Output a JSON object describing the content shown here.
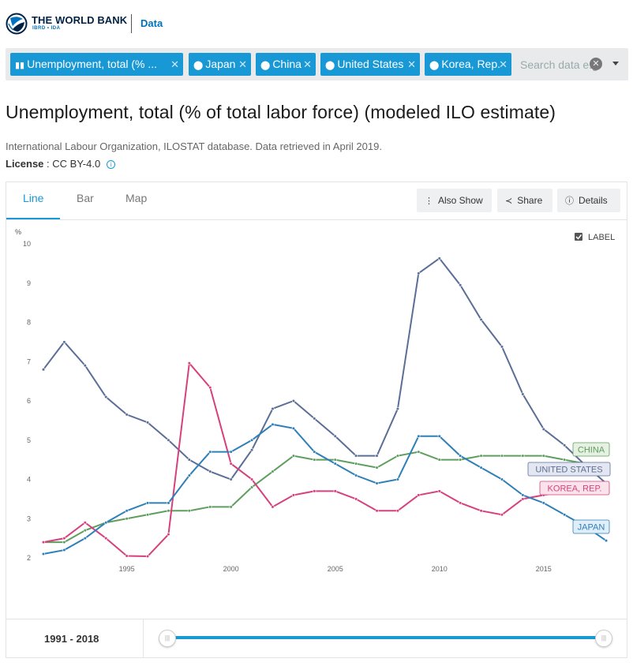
{
  "header": {
    "brand": "THE WORLD BANK",
    "brand_sub": "IBRD • IDA",
    "section": "Data"
  },
  "filters": {
    "chips": [
      {
        "label": "Unemployment, total (% ...",
        "icon": "bar-chart-icon"
      },
      {
        "label": "Japan",
        "icon": "pin-icon"
      },
      {
        "label": "China",
        "icon": "pin-icon"
      },
      {
        "label": "United States",
        "icon": "pin-icon"
      },
      {
        "label": "Korea, Rep.",
        "icon": "pin-icon"
      }
    ],
    "search_placeholder": "Search data e.g"
  },
  "page": {
    "title": "Unemployment, total (% of total labor force) (modeled ILO estimate)",
    "source": "International Labour Organization, ILOSTAT database. Data retrieved in April 2019.",
    "license_label": "License",
    "license_value": " : CC BY-4.0"
  },
  "tabs": [
    {
      "label": "Line",
      "active": true
    },
    {
      "label": "Bar",
      "active": false
    },
    {
      "label": "Map",
      "active": false
    }
  ],
  "actions": {
    "also_show": "Also Show",
    "share": "Share",
    "details": "Details"
  },
  "chart_data": {
    "type": "line",
    "ylabel": "%",
    "ylim": [
      2,
      10
    ],
    "yticks": [
      "2",
      "3",
      "4",
      "5",
      "6",
      "7",
      "8",
      "9",
      "10"
    ],
    "xlim": [
      1991,
      2018
    ],
    "xticks": [
      "1995",
      "2000",
      "2005",
      "2010",
      "2015"
    ],
    "label_toggle": "LABEL",
    "label_checked": true,
    "x": [
      1991,
      1992,
      1993,
      1994,
      1995,
      1996,
      1997,
      1998,
      1999,
      2000,
      2001,
      2002,
      2003,
      2004,
      2005,
      2006,
      2007,
      2008,
      2009,
      2010,
      2011,
      2012,
      2013,
      2014,
      2015,
      2016,
      2017,
      2018
    ],
    "series": [
      {
        "name": "UNITED STATES",
        "color": "#5b6e96",
        "values": [
          6.8,
          7.5,
          6.9,
          6.1,
          5.65,
          5.45,
          5.0,
          4.5,
          4.2,
          4.0,
          4.75,
          5.8,
          6.0,
          5.55,
          5.1,
          4.6,
          4.6,
          5.8,
          9.25,
          9.63,
          8.95,
          8.07,
          7.38,
          6.17,
          5.28,
          4.87,
          4.36,
          3.9
        ]
      },
      {
        "name": "CHINA",
        "color": "#5e9e5e",
        "values": [
          2.4,
          2.4,
          2.7,
          2.9,
          3.0,
          3.1,
          3.2,
          3.2,
          3.3,
          3.3,
          3.8,
          4.2,
          4.6,
          4.5,
          4.5,
          4.4,
          4.3,
          4.6,
          4.7,
          4.5,
          4.5,
          4.6,
          4.6,
          4.6,
          4.6,
          4.5,
          4.4,
          4.4
        ]
      },
      {
        "name": "KOREA, REP.",
        "color": "#d6407c",
        "values": [
          2.4,
          2.5,
          2.9,
          2.5,
          2.05,
          2.04,
          2.6,
          6.96,
          6.34,
          4.4,
          4.0,
          3.3,
          3.6,
          3.7,
          3.7,
          3.5,
          3.2,
          3.2,
          3.6,
          3.7,
          3.4,
          3.2,
          3.1,
          3.5,
          3.6,
          3.7,
          3.7,
          3.8
        ]
      },
      {
        "name": "JAPAN",
        "color": "#2f7fb8",
        "values": [
          2.1,
          2.2,
          2.5,
          2.9,
          3.2,
          3.4,
          3.4,
          4.1,
          4.7,
          4.7,
          5.0,
          5.4,
          5.3,
          4.7,
          4.4,
          4.1,
          3.9,
          4.0,
          5.1,
          5.1,
          4.6,
          4.3,
          4.0,
          3.6,
          3.4,
          3.1,
          2.8,
          2.44
        ]
      }
    ]
  },
  "range": {
    "start": "1991",
    "separator": " - ",
    "end": "2018"
  }
}
